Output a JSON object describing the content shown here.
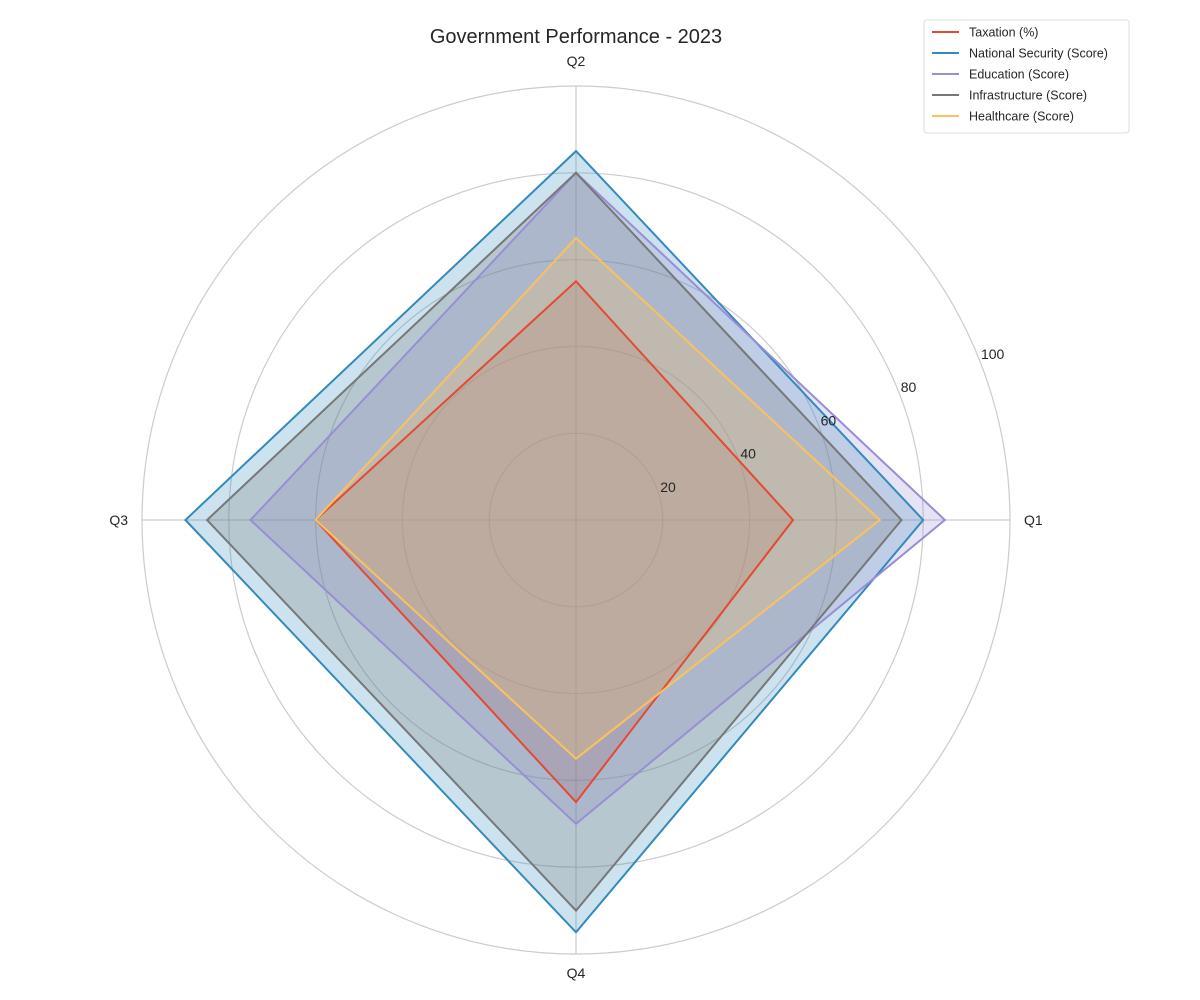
{
  "chart_data": {
    "type": "radar",
    "title": "Government Performance - 2023",
    "categories": [
      "Q1",
      "Q2",
      "Q3",
      "Q4"
    ],
    "rlim": [
      0,
      100
    ],
    "rticks": [
      20,
      40,
      60,
      80,
      100
    ],
    "grid": true,
    "legend_position": "top-right",
    "series": [
      {
        "name": "Taxation (%)",
        "color": "#e24a33",
        "values": [
          50,
          55,
          60,
          65
        ]
      },
      {
        "name": "National Security (Score)",
        "color": "#348abd",
        "values": [
          80,
          85,
          90,
          95
        ]
      },
      {
        "name": "Education (Score)",
        "color": "#988ed5",
        "values": [
          85,
          80,
          75,
          70
        ]
      },
      {
        "name": "Infrastructure (Score)",
        "color": "#777777",
        "values": [
          75,
          80,
          85,
          90
        ]
      },
      {
        "name": "Healthcare (Score)",
        "color": "#fbc15e",
        "values": [
          70,
          65,
          60,
          55
        ]
      }
    ]
  }
}
